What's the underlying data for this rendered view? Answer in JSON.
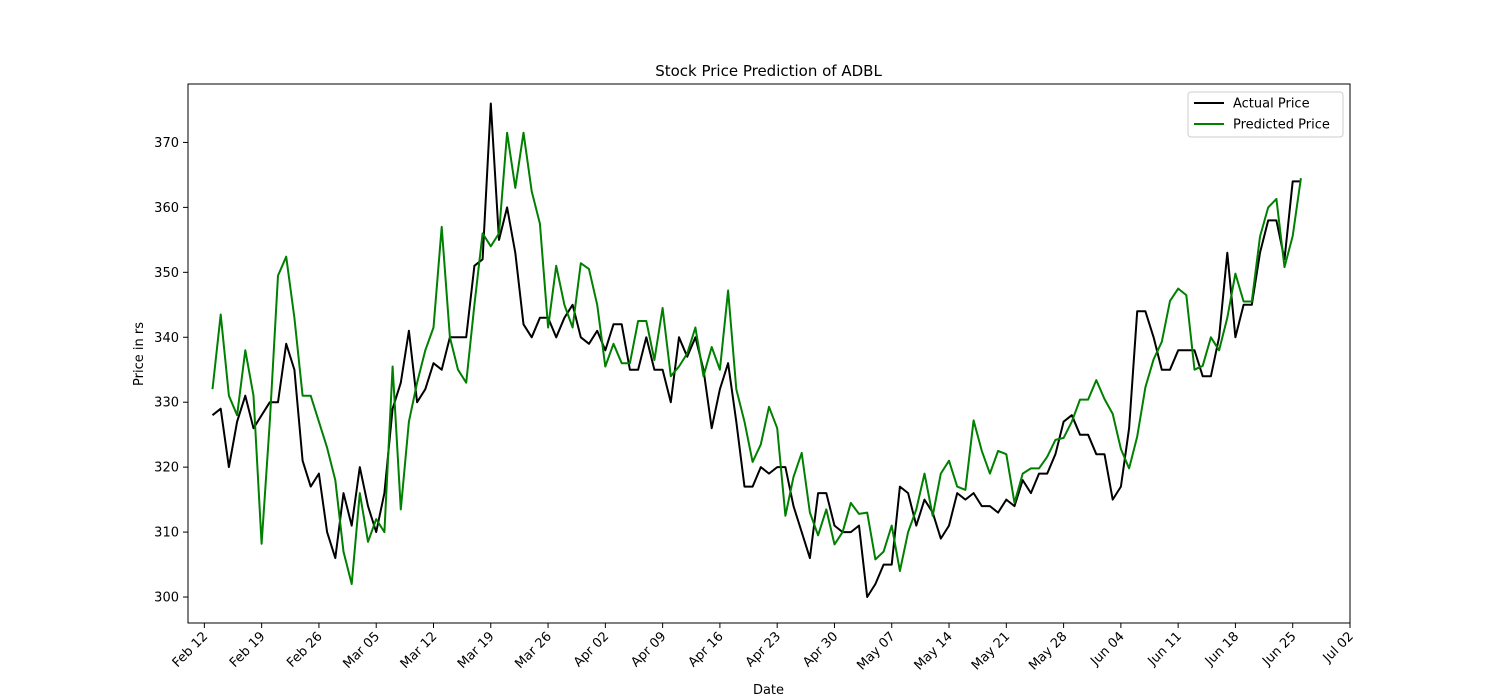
{
  "chart_data": {
    "type": "line",
    "title": "Stock Price Prediction of ADBL",
    "xlabel": "Date",
    "ylabel": "Price in rs",
    "xlim": [
      0,
      142
    ],
    "ylim": [
      296,
      379
    ],
    "x_ticks": [
      {
        "day": 2,
        "label": "Feb 12"
      },
      {
        "day": 9,
        "label": "Feb 19"
      },
      {
        "day": 16,
        "label": "Feb 26"
      },
      {
        "day": 23,
        "label": "Mar 05"
      },
      {
        "day": 30,
        "label": "Mar 12"
      },
      {
        "day": 37,
        "label": "Mar 19"
      },
      {
        "day": 44,
        "label": "Mar 26"
      },
      {
        "day": 51,
        "label": "Apr 02"
      },
      {
        "day": 58,
        "label": "Apr 09"
      },
      {
        "day": 65,
        "label": "Apr 16"
      },
      {
        "day": 72,
        "label": "Apr 23"
      },
      {
        "day": 79,
        "label": "Apr 30"
      },
      {
        "day": 86,
        "label": "May 07"
      },
      {
        "day": 93,
        "label": "May 14"
      },
      {
        "day": 100,
        "label": "May 21"
      },
      {
        "day": 107,
        "label": "May 28"
      },
      {
        "day": 114,
        "label": "Jun 04"
      },
      {
        "day": 121,
        "label": "Jun 11"
      },
      {
        "day": 128,
        "label": "Jun 18"
      },
      {
        "day": 135,
        "label": "Jun 25"
      },
      {
        "day": 142,
        "label": "Jul 02"
      }
    ],
    "y_ticks": [
      300,
      310,
      320,
      330,
      340,
      350,
      360,
      370
    ],
    "grid": false,
    "legend": "top-right",
    "series": [
      {
        "name": "Actual Price",
        "color": "#000000",
        "points": [
          [
            3,
            328
          ],
          [
            4,
            329
          ],
          [
            5,
            320
          ],
          [
            6,
            327
          ],
          [
            7,
            331
          ],
          [
            8,
            326
          ],
          [
            10,
            330
          ],
          [
            11,
            330
          ],
          [
            12,
            339
          ],
          [
            13,
            335
          ],
          [
            14,
            321
          ],
          [
            15,
            317
          ],
          [
            16,
            319
          ],
          [
            17,
            310
          ],
          [
            18,
            306
          ],
          [
            19,
            316
          ],
          [
            20,
            311
          ],
          [
            21,
            320
          ],
          [
            22,
            314
          ],
          [
            23,
            310
          ],
          [
            24,
            316
          ],
          [
            25,
            329
          ],
          [
            26,
            333
          ],
          [
            27,
            341
          ],
          [
            28,
            330
          ],
          [
            29,
            332
          ],
          [
            30,
            336
          ],
          [
            31,
            335
          ],
          [
            32,
            340
          ],
          [
            33,
            340
          ],
          [
            34,
            340
          ],
          [
            35,
            351
          ],
          [
            36,
            352
          ],
          [
            37,
            376
          ],
          [
            38,
            355
          ],
          [
            39,
            360
          ],
          [
            40,
            353
          ],
          [
            41,
            342
          ],
          [
            42,
            340
          ],
          [
            43,
            343
          ],
          [
            44,
            343
          ],
          [
            45,
            340
          ],
          [
            46,
            343
          ],
          [
            47,
            345
          ],
          [
            48,
            340
          ],
          [
            49,
            339
          ],
          [
            50,
            341
          ],
          [
            51,
            338
          ],
          [
            52,
            342
          ],
          [
            53,
            342
          ],
          [
            54,
            335
          ],
          [
            55,
            335
          ],
          [
            56,
            340
          ],
          [
            57,
            335
          ],
          [
            58,
            335
          ],
          [
            59,
            330
          ],
          [
            60,
            340
          ],
          [
            61,
            337
          ],
          [
            62,
            340
          ],
          [
            63,
            335
          ],
          [
            64,
            326
          ],
          [
            65,
            332
          ],
          [
            66,
            336
          ],
          [
            67,
            327
          ],
          [
            68,
            317
          ],
          [
            69,
            317
          ],
          [
            70,
            320
          ],
          [
            71,
            319
          ],
          [
            72,
            320
          ],
          [
            73,
            320
          ],
          [
            74,
            314
          ],
          [
            75,
            310
          ],
          [
            76,
            306
          ],
          [
            77,
            316
          ],
          [
            78,
            316
          ],
          [
            79,
            311
          ],
          [
            80,
            310
          ],
          [
            81,
            310
          ],
          [
            82,
            311
          ],
          [
            83,
            300
          ],
          [
            84,
            302
          ],
          [
            85,
            305
          ],
          [
            86,
            305
          ],
          [
            87,
            317
          ],
          [
            88,
            316
          ],
          [
            89,
            311
          ],
          [
            90,
            315
          ],
          [
            91,
            313
          ],
          [
            92,
            309
          ],
          [
            93,
            311
          ],
          [
            94,
            316
          ],
          [
            95,
            315
          ],
          [
            96,
            316
          ],
          [
            97,
            314
          ],
          [
            98,
            314
          ],
          [
            99,
            313
          ],
          [
            100,
            315
          ],
          [
            101,
            314
          ],
          [
            102,
            318
          ],
          [
            103,
            316
          ],
          [
            104,
            319
          ],
          [
            105,
            319
          ],
          [
            106,
            322
          ],
          [
            107,
            327
          ],
          [
            108,
            328
          ],
          [
            109,
            325
          ],
          [
            110,
            325
          ],
          [
            111,
            322
          ],
          [
            112,
            322
          ],
          [
            113,
            315
          ],
          [
            114,
            317
          ],
          [
            115,
            326
          ],
          [
            116,
            344
          ],
          [
            117,
            344
          ],
          [
            118,
            340
          ],
          [
            119,
            335
          ],
          [
            120,
            335
          ],
          [
            121,
            338
          ],
          [
            122,
            338
          ],
          [
            123,
            338
          ],
          [
            124,
            334
          ],
          [
            125,
            334
          ],
          [
            126,
            340
          ],
          [
            127,
            353
          ],
          [
            128,
            340
          ],
          [
            129,
            345
          ],
          [
            130,
            345
          ],
          [
            131,
            353
          ],
          [
            132,
            358
          ],
          [
            133,
            358
          ],
          [
            134,
            352
          ],
          [
            135,
            364
          ],
          [
            136,
            364
          ]
        ]
      },
      {
        "name": "Predicted Price",
        "color": "#008000",
        "points": [
          [
            3,
            332
          ],
          [
            4,
            343.5
          ],
          [
            5,
            331
          ],
          [
            6,
            328
          ],
          [
            7,
            338
          ],
          [
            8,
            331
          ],
          [
            9,
            308.2
          ],
          [
            10,
            327
          ],
          [
            11,
            349.5
          ],
          [
            12,
            352.4
          ],
          [
            13,
            343
          ],
          [
            14,
            331
          ],
          [
            15,
            331
          ],
          [
            16,
            327
          ],
          [
            17,
            323
          ],
          [
            18,
            318
          ],
          [
            19,
            307
          ],
          [
            20,
            302
          ],
          [
            21,
            316
          ],
          [
            22,
            308.5
          ],
          [
            23,
            312
          ],
          [
            24,
            310
          ],
          [
            25,
            335.5
          ],
          [
            26,
            313.5
          ],
          [
            27,
            327
          ],
          [
            28,
            333
          ],
          [
            29,
            338
          ],
          [
            30,
            341.5
          ],
          [
            31,
            357
          ],
          [
            32,
            340
          ],
          [
            33,
            335
          ],
          [
            34,
            333
          ],
          [
            35,
            345
          ],
          [
            36,
            356
          ],
          [
            37,
            354
          ],
          [
            38,
            356
          ],
          [
            39,
            371.5
          ],
          [
            40,
            363
          ],
          [
            41,
            371.5
          ],
          [
            42,
            362.5
          ],
          [
            43,
            357.5
          ],
          [
            44,
            341.5
          ],
          [
            45,
            351
          ],
          [
            46,
            345
          ],
          [
            47,
            341.5
          ],
          [
            48,
            351.4
          ],
          [
            49,
            350.5
          ],
          [
            50,
            345
          ],
          [
            51,
            335.5
          ],
          [
            52,
            339
          ],
          [
            53,
            336
          ],
          [
            54,
            336
          ],
          [
            55,
            342.5
          ],
          [
            56,
            342.5
          ],
          [
            57,
            336.5
          ],
          [
            58,
            344.5
          ],
          [
            59,
            334
          ],
          [
            60,
            335.5
          ],
          [
            61,
            337.5
          ],
          [
            62,
            341.5
          ],
          [
            63,
            334
          ],
          [
            64,
            338.5
          ],
          [
            65,
            335
          ],
          [
            66,
            347.2
          ],
          [
            67,
            332
          ],
          [
            68,
            327
          ],
          [
            69,
            320.8
          ],
          [
            70,
            323.5
          ],
          [
            71,
            329.3
          ],
          [
            72,
            326
          ],
          [
            73,
            312.5
          ],
          [
            74,
            318.5
          ],
          [
            75,
            322.2
          ],
          [
            76,
            313
          ],
          [
            77,
            309.5
          ],
          [
            78,
            313.5
          ],
          [
            79,
            308.1
          ],
          [
            80,
            310
          ],
          [
            81,
            314.5
          ],
          [
            82,
            312.8
          ],
          [
            83,
            313
          ],
          [
            84,
            305.8
          ],
          [
            85,
            307
          ],
          [
            86,
            311
          ],
          [
            87,
            304
          ],
          [
            88,
            310
          ],
          [
            89,
            313.5
          ],
          [
            90,
            319
          ],
          [
            91,
            312.5
          ],
          [
            92,
            319
          ],
          [
            93,
            321
          ],
          [
            94,
            317
          ],
          [
            95,
            316.5
          ],
          [
            96,
            327.2
          ],
          [
            97,
            322.5
          ],
          [
            98,
            319
          ],
          [
            99,
            322.5
          ],
          [
            100,
            322
          ],
          [
            101,
            314.5
          ],
          [
            102,
            319
          ],
          [
            103,
            319.8
          ],
          [
            104,
            319.8
          ],
          [
            105,
            321.6
          ],
          [
            106,
            324.2
          ],
          [
            107,
            324.5
          ],
          [
            108,
            327
          ],
          [
            109,
            330.4
          ],
          [
            110,
            330.4
          ],
          [
            111,
            333.4
          ],
          [
            112,
            330.5
          ],
          [
            113,
            328.2
          ],
          [
            114,
            322.8
          ],
          [
            115,
            319.8
          ],
          [
            116,
            324.7
          ],
          [
            117,
            332.3
          ],
          [
            118,
            336.6
          ],
          [
            119,
            339.3
          ],
          [
            120,
            345.6
          ],
          [
            121,
            347.5
          ],
          [
            122,
            346.5
          ],
          [
            123,
            335
          ],
          [
            124,
            335.6
          ],
          [
            125,
            340
          ],
          [
            126,
            338
          ],
          [
            127,
            343
          ],
          [
            128,
            349.8
          ],
          [
            129,
            345.5
          ],
          [
            130,
            345.5
          ],
          [
            131,
            355.5
          ],
          [
            132,
            360
          ],
          [
            133,
            361.3
          ],
          [
            134,
            350.8
          ],
          [
            135,
            355.6
          ],
          [
            136,
            364.5
          ]
        ]
      }
    ]
  }
}
